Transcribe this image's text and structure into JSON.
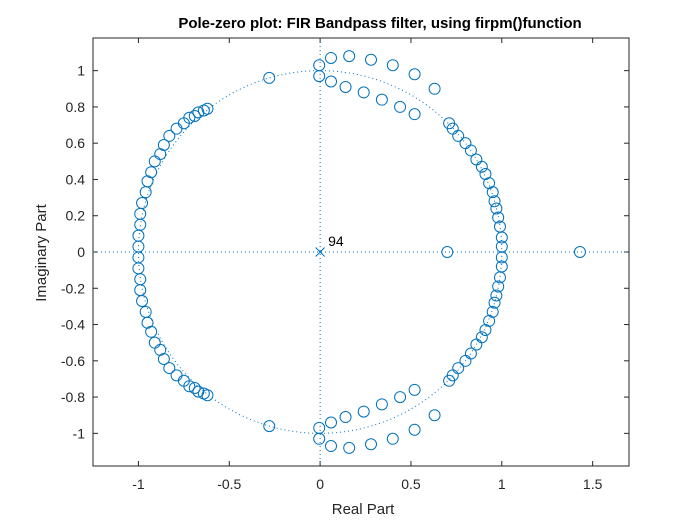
{
  "chart_data": {
    "type": "scatter",
    "title": "Pole-zero plot: FIR Bandpass filter, using firpm()function",
    "xlabel": "Real Part",
    "ylabel": "Imaginary Part",
    "xlim": [
      -1.25,
      1.7
    ],
    "ylim": [
      -1.18,
      1.18
    ],
    "x_ticks": [
      -1,
      -0.5,
      0,
      0.5,
      1,
      1.5
    ],
    "x_tick_labels": [
      "-1",
      "-0.5",
      "0",
      "0.5",
      "1",
      "1.5"
    ],
    "y_ticks": [
      -1,
      -0.8,
      -0.6,
      -0.4,
      -0.2,
      0,
      0.2,
      0.4,
      0.6,
      0.8,
      1
    ],
    "y_tick_labels": [
      "-1",
      "-0.8",
      "-0.6",
      "-0.4",
      "-0.2",
      "0",
      "0.2",
      "0.4",
      "0.6",
      "0.8",
      "1"
    ],
    "grid": false,
    "unit_circle": true,
    "marker_color": "#0072BD",
    "unit_circle_color": "#0072BD",
    "zeros_upper": [
      [
        -1.0,
        0.03
      ],
      [
        -1.0,
        0.09
      ],
      [
        -0.99,
        0.15
      ],
      [
        -0.99,
        0.21
      ],
      [
        -0.98,
        0.27
      ],
      [
        -0.96,
        0.33
      ],
      [
        -0.95,
        0.39
      ],
      [
        -0.93,
        0.44
      ],
      [
        -0.91,
        0.5
      ],
      [
        -0.88,
        0.54
      ],
      [
        -0.86,
        0.59
      ],
      [
        -0.83,
        0.64
      ],
      [
        -0.79,
        0.68
      ],
      [
        -0.75,
        0.71
      ],
      [
        -0.72,
        0.74
      ],
      [
        -0.69,
        0.75
      ],
      [
        -0.67,
        0.77
      ],
      [
        -0.64,
        0.78
      ],
      [
        -0.62,
        0.79
      ],
      [
        -0.28,
        0.96
      ],
      [
        -0.005,
        0.97
      ],
      [
        -0.005,
        1.03
      ],
      [
        0.06,
        0.94
      ],
      [
        0.14,
        0.91
      ],
      [
        0.24,
        0.88
      ],
      [
        0.34,
        0.84
      ],
      [
        0.44,
        0.8
      ],
      [
        0.52,
        0.76
      ],
      [
        0.06,
        1.07
      ],
      [
        0.16,
        1.08
      ],
      [
        0.28,
        1.06
      ],
      [
        0.4,
        1.03
      ],
      [
        0.52,
        0.98
      ],
      [
        0.63,
        0.9
      ],
      [
        0.71,
        0.71
      ],
      [
        0.73,
        0.68
      ],
      [
        0.76,
        0.64
      ],
      [
        0.8,
        0.6
      ],
      [
        0.83,
        0.56
      ],
      [
        0.86,
        0.51
      ],
      [
        0.89,
        0.47
      ],
      [
        0.91,
        0.43
      ],
      [
        0.93,
        0.38
      ],
      [
        0.95,
        0.33
      ],
      [
        0.96,
        0.28
      ],
      [
        0.97,
        0.24
      ],
      [
        0.98,
        0.19
      ],
      [
        0.99,
        0.14
      ],
      [
        1.0,
        0.08
      ],
      [
        1.0,
        0.03
      ]
    ],
    "zeros_real": [
      0.7,
      1.43
    ],
    "pole": {
      "x": 0,
      "y": 0,
      "label": "94"
    }
  }
}
